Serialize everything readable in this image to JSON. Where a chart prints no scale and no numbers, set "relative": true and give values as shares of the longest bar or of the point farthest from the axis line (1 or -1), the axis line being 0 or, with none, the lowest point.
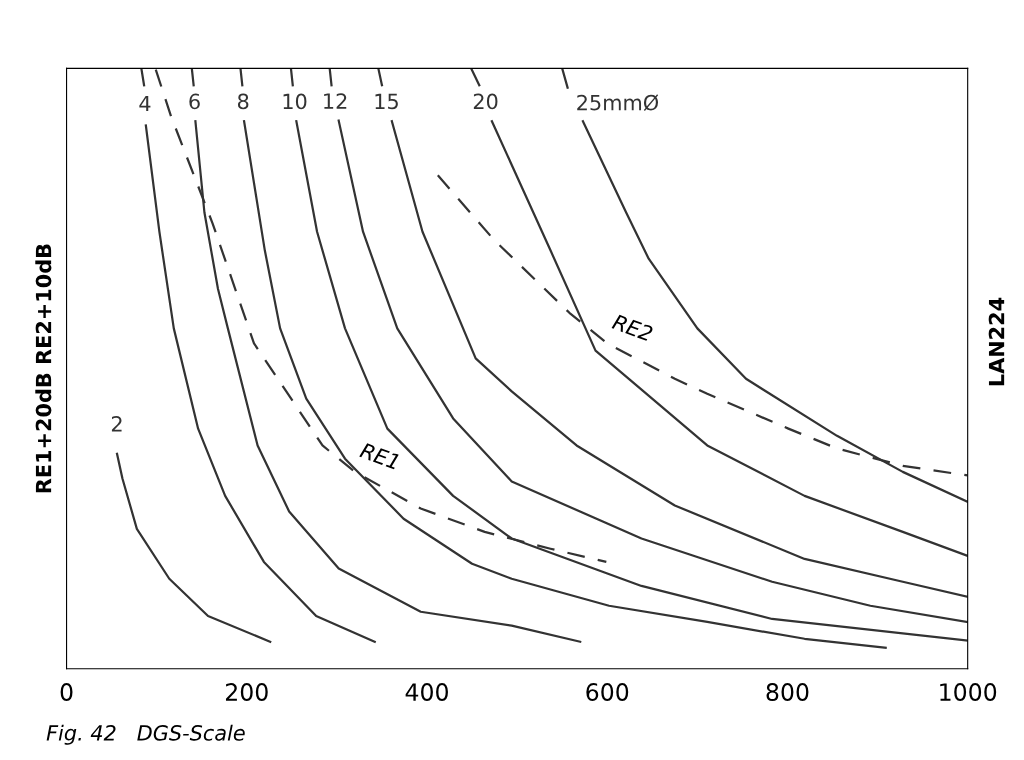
{
  "chart_data": {
    "type": "line",
    "relative": true,
    "ylabel": "RE1+20dB RE2+10dB",
    "xlim": [
      0,
      1000
    ],
    "xticks": [
      0,
      200,
      400,
      600,
      800,
      1000
    ],
    "grid": false,
    "legend": false,
    "annotations": [
      {
        "text": "RE1",
        "x": 320,
        "y": 0.328
      },
      {
        "text": "RE2",
        "x": 600,
        "y": 0.542
      },
      "LAN224",
      "Fig. 42   DGS-Scale"
    ],
    "series": [
      {
        "name": "2",
        "color": "#333333",
        "x": [
          56,
          62,
          78,
          114,
          157,
          226
        ],
        "values": [
          0.358,
          0.317,
          0.233,
          0.15,
          0.088,
          0.045
        ]
      },
      {
        "name": "4",
        "color": "#333333",
        "x": [
          83,
          86,
          87,
          88,
          103,
          119,
          146,
          176,
          219,
          277,
          342
        ],
        "values": [
          1.0,
          0.972,
          null,
          0.905,
          0.728,
          0.567,
          0.4,
          0.288,
          0.178,
          0.088,
          0.045
        ]
      },
      {
        "name": "6",
        "color": "#333333",
        "x": [
          139,
          141,
          142,
          143,
          153,
          168,
          179,
          212,
          247,
          302,
          393,
          494,
          570
        ],
        "values": [
          1.0,
          0.972,
          null,
          0.912,
          0.76,
          0.633,
          0.567,
          0.372,
          0.262,
          0.167,
          0.095,
          0.072,
          0.045
        ]
      },
      {
        "name": "8",
        "color": "#333333",
        "x": [
          193,
          195,
          196,
          197,
          220,
          237,
          266,
          309,
          374,
          450,
          494,
          602,
          711,
          819,
          909
        ],
        "values": [
          1.0,
          0.972,
          null,
          0.912,
          0.697,
          0.567,
          0.45,
          0.35,
          0.25,
          0.175,
          0.15,
          0.105,
          0.078,
          0.05,
          0.035
        ]
      },
      {
        "name": "10",
        "color": "#333333",
        "x": [
          249,
          251,
          253,
          255,
          278,
          309,
          356,
          429,
          494,
          638,
          783,
          1000
        ],
        "values": [
          1.0,
          0.972,
          null,
          0.912,
          0.728,
          0.567,
          0.4,
          0.288,
          0.217,
          0.138,
          0.083,
          0.047
        ]
      },
      {
        "name": "12",
        "color": "#333333",
        "x": [
          292,
          294,
          298,
          302,
          329,
          367,
          429,
          494,
          638,
          783,
          892,
          1000
        ],
        "values": [
          1.0,
          0.972,
          null,
          0.913,
          0.728,
          0.567,
          0.417,
          0.312,
          0.217,
          0.145,
          0.105,
          0.078
        ]
      },
      {
        "name": "15",
        "color": "#333333",
        "x": [
          346,
          350,
          355,
          361,
          395,
          454,
          494,
          566,
          675,
          819,
          928,
          1000
        ],
        "values": [
          1.0,
          0.972,
          null,
          0.912,
          0.728,
          0.517,
          0.462,
          0.372,
          0.272,
          0.183,
          0.145,
          0.12
        ]
      },
      {
        "name": "20",
        "color": "#333333",
        "x": [
          449,
          458,
          465,
          472,
          537,
          587,
          624,
          711,
          819,
          928,
          1000
        ],
        "values": [
          1.0,
          0.972,
          null,
          0.912,
          0.697,
          0.53,
          0.483,
          0.372,
          0.288,
          0.228,
          0.188
        ]
      },
      {
        "name": "25mmØ",
        "color": "#333333",
        "x": [
          550,
          556,
          565,
          573,
          621,
          646,
          700,
          754,
          855,
          928,
          1000
        ],
        "values": [
          1.0,
          0.968,
          null,
          0.912,
          0.76,
          0.683,
          0.567,
          0.483,
          0.388,
          0.328,
          0.278
        ]
      },
      {
        "color": "#333333",
        "line_style": "dashed",
        "x": [
          99,
          116,
          162,
          208,
          284,
          320,
          393,
          464,
          537,
          599
        ],
        "values": [
          0.998,
          0.92,
          0.742,
          0.542,
          0.372,
          0.328,
          0.267,
          0.228,
          0.2,
          0.178
        ]
      },
      {
        "color": "#333333",
        "line_style": "dashed",
        "x": [
          412,
          474,
          558,
          600,
          675,
          711,
          801,
          855,
          928,
          1000
        ],
        "values": [
          0.822,
          0.715,
          0.593,
          0.542,
          0.483,
          0.458,
          0.4,
          0.367,
          0.338,
          0.322
        ]
      }
    ]
  }
}
